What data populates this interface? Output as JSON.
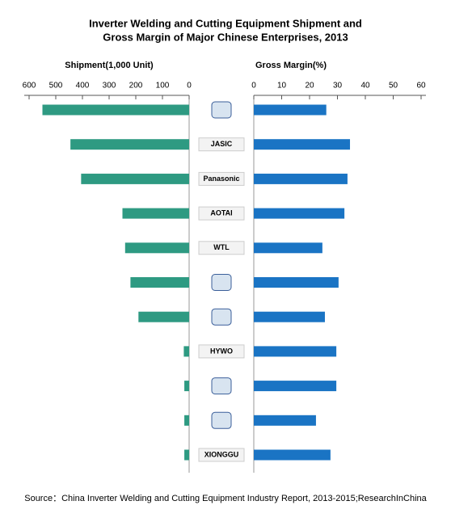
{
  "chart_data": {
    "type": "bar",
    "title": [
      "Inverter Welding and Cutting Equipment Shipment and",
      "Gross Margin of Major Chinese Enterprises, 2013"
    ],
    "categories": [
      null,
      "JASIC",
      "Panasonic",
      "AOTAI",
      "WTL",
      null,
      null,
      "HYWO",
      null,
      null,
      "XIONGGU"
    ],
    "panels": [
      {
        "title": "Shipment(1,000 Unit)",
        "color": "#2e9a82",
        "xlim": [
          600,
          0
        ],
        "xticks": [
          600,
          500,
          400,
          300,
          200,
          100,
          0
        ],
        "values": [
          550,
          445,
          405,
          250,
          240,
          220,
          190,
          20,
          18,
          18,
          18
        ]
      },
      {
        "title": "Gross Margin(%)",
        "color": "#1a74c4",
        "xlim": [
          0,
          60
        ],
        "xticks": [
          0,
          10,
          20,
          30,
          40,
          50,
          60
        ],
        "values": [
          26,
          34.5,
          33.6,
          32.5,
          24.6,
          30.4,
          25.5,
          29.6,
          29.6,
          22.3,
          27.5
        ]
      }
    ],
    "source": "Source：China Inverter Welding and Cutting Equipment Industry Report, 2013-2015;ResearchInChina"
  }
}
